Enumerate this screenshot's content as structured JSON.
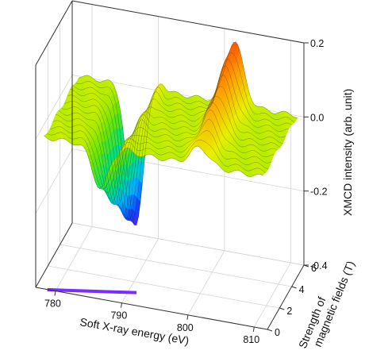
{
  "chart_data": {
    "type": "surface-3d",
    "xlabel": "Soft X-ray energy (eV)",
    "ylabel_line1": "Strength of",
    "ylabel_line2": "magnetic fields (T)",
    "zlabel": "XMCD intensity (arb. unit)",
    "x_ticks": [
      "780",
      "790",
      "800",
      "810"
    ],
    "y_ticks": [
      "0",
      "2",
      "4",
      "6"
    ],
    "z_ticks": [
      "-0.4",
      "-0.2",
      "0.0",
      "0.2"
    ],
    "xlim": [
      777,
      812
    ],
    "ylim": [
      0,
      6
    ],
    "zlim": [
      -0.4,
      0.2
    ],
    "grid": true,
    "colormap": [
      "#6a1bff",
      "#1440ff",
      "#00b7ff",
      "#00e07a",
      "#6ee600",
      "#e8f000",
      "#ff9a00",
      "#ff2a00"
    ],
    "projection_line": {
      "x_range": [
        779,
        791
      ],
      "y": 0,
      "color": "#7b2cff"
    },
    "series": [
      {
        "x": [
          778,
          780,
          782,
          784,
          786,
          788,
          790,
          792,
          794,
          796,
          798,
          800,
          802,
          804,
          806,
          808,
          810,
          812
        ],
        "y_field": [
          0,
          0.5,
          1,
          1.5,
          2,
          2.5,
          3,
          3.5,
          4,
          4.5,
          5,
          5.5,
          6
        ],
        "peaks": [
          {
            "center_eV": 786.5,
            "width_eV": 1.7,
            "amplitude_at_6T": -0.38
          },
          {
            "center_eV": 801.5,
            "width_eV": 1.9,
            "amplitude_at_6T": 0.17
          }
        ]
      }
    ]
  }
}
